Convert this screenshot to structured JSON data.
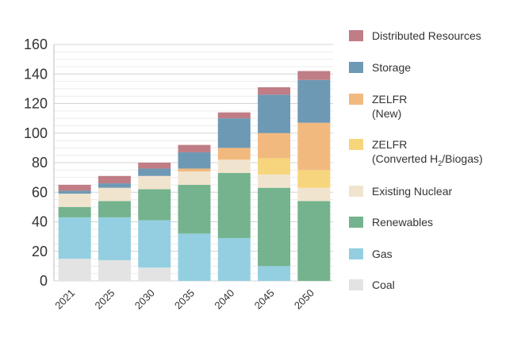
{
  "chart_data": {
    "type": "bar",
    "stacked": true,
    "categories": [
      "2021",
      "2025",
      "2030",
      "2035",
      "2040",
      "2045",
      "2050"
    ],
    "ylim": [
      0,
      160
    ],
    "yticks": [
      0,
      20,
      40,
      60,
      80,
      100,
      120,
      140,
      160
    ],
    "grid": true,
    "legend_position": "right",
    "series": [
      {
        "name": "Coal",
        "color": "#e3e3e3",
        "values": [
          15,
          14,
          9,
          0,
          0,
          0,
          0
        ]
      },
      {
        "name": "Gas",
        "color": "#93cfe0",
        "values": [
          28,
          29,
          32,
          32,
          29,
          10,
          0
        ]
      },
      {
        "name": "Renewables",
        "color": "#74b38d",
        "values": [
          7,
          11,
          21,
          33,
          44,
          53,
          54
        ]
      },
      {
        "name": "Existing Nuclear",
        "color": "#f1e4cf",
        "values": [
          9,
          9,
          9,
          9,
          9,
          9,
          9
        ]
      },
      {
        "name": "ZELFR (Converted H2/Biogas)",
        "color": "#f7d57c",
        "values": [
          0,
          0,
          0,
          0,
          0,
          11,
          12
        ]
      },
      {
        "name": "ZELFR (New)",
        "color": "#f2b97e",
        "values": [
          0,
          0,
          0,
          2,
          8,
          17,
          32
        ]
      },
      {
        "name": "Storage",
        "color": "#6e99b4",
        "values": [
          2,
          3,
          5,
          11,
          20,
          26,
          29
        ]
      },
      {
        "name": "Distributed Resources",
        "color": "#c07d85",
        "values": [
          4,
          5,
          4,
          5,
          4,
          5,
          6
        ]
      }
    ]
  },
  "legend": {
    "items": [
      {
        "line1": "Distributed Resources",
        "color": "#c07d85"
      },
      {
        "line1": "Storage",
        "color": "#6e99b4"
      },
      {
        "line1": "ZELFR",
        "line2": "(New)",
        "color": "#f2b97e"
      },
      {
        "line1": "ZELFR",
        "line2_pre": "(Converted H",
        "line2_sub": "2",
        "line2_post": "/Biogas)",
        "color": "#f7d57c"
      },
      {
        "line1": "Existing Nuclear",
        "color": "#f1e4cf"
      },
      {
        "line1": "Renewables",
        "color": "#74b38d"
      },
      {
        "line1": "Gas",
        "color": "#93cfe0"
      },
      {
        "line1": "Coal",
        "color": "#e3e3e3"
      }
    ]
  }
}
